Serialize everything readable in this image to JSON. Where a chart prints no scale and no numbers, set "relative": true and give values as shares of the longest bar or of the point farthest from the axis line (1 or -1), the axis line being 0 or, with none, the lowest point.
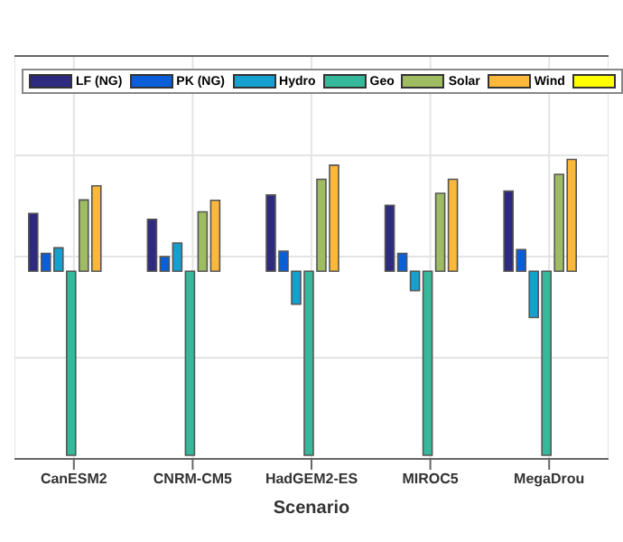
{
  "chart_data": {
    "type": "bar",
    "relative": true,
    "xlabel": "Scenario",
    "categories": [
      "CanESM2",
      "CNRM-CM5",
      "HadGEM2-ES",
      "MIROC5",
      "MegaDrou"
    ],
    "series": [
      {
        "name": "LF (NG)",
        "color": "#2e2a7f",
        "values": [
          0.314,
          0.282,
          0.414,
          0.358,
          0.435
        ]
      },
      {
        "name": "PK (NG)",
        "color": "#0a5fd8",
        "values": [
          0.097,
          0.079,
          0.109,
          0.097,
          0.118
        ]
      },
      {
        "name": "Hydro",
        "color": "#16a0d0",
        "values": [
          0.127,
          0.153,
          -0.179,
          -0.106,
          -0.252
        ]
      },
      {
        "name": "Geo",
        "color": "#36b89a",
        "values": [
          -1,
          -1,
          -1,
          -1,
          -1
        ]
      },
      {
        "name": "Solar",
        "color": "#9fbc62",
        "values": [
          0.387,
          0.323,
          0.499,
          0.423,
          0.526
        ]
      },
      {
        "name": "Wind",
        "color": "#fbb83a",
        "values": [
          0.464,
          0.385,
          0.576,
          0.499,
          0.607
        ]
      },
      {
        "color": "#ffff00",
        "values": [
          0,
          0,
          0,
          0,
          0
        ]
      }
    ],
    "grid": true,
    "legend": "top"
  }
}
